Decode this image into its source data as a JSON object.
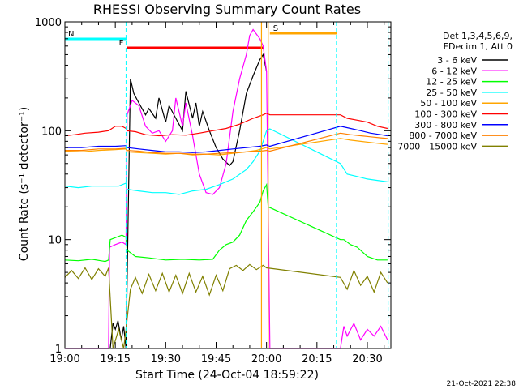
{
  "chart_data": {
    "type": "line",
    "title": "RHESSI Observing Summary Count Rates",
    "xlabel": "Start Time (24-Oct-04 18:59:22)",
    "ylabel": "Count Rate (s⁻¹ detector⁻¹)",
    "y_scale": "log",
    "ylim": [
      1,
      1000
    ],
    "xlim_minutes_after_19:00": [
      0,
      97
    ],
    "x_tick_labels": [
      "19:00",
      "19:15",
      "19:30",
      "19:45",
      "20:00",
      "20:15",
      "20:30"
    ],
    "y_tick_labels": [
      "1",
      "10",
      "100",
      "1000"
    ],
    "legend_header": [
      "Det 1,3,4,5,6,9,",
      "FDecim 1, Att 0"
    ],
    "legend_placement": "right",
    "footer_timestamp": "21-Oct-2021 22:38",
    "flag_labels": [
      {
        "label": "N",
        "color": "#00ffff",
        "start": 0,
        "end": 18.5
      },
      {
        "label": "F",
        "color": "#ff0000",
        "start": 18.5,
        "end": 59
      },
      {
        "label": "S",
        "color": "#ffa500",
        "start": 61,
        "end": 81
      }
    ],
    "night_markers_min": [
      18.2,
      80.8,
      96.2
    ],
    "series": [
      {
        "name": "3 - 6 keV",
        "color": "#000000",
        "points": [
          [
            13.5,
            1
          ],
          [
            14.3,
            1.7
          ],
          [
            15,
            1.5
          ],
          [
            15.8,
            1.8
          ],
          [
            16.8,
            1.2
          ],
          [
            17.5,
            1.6
          ],
          [
            18.2,
            1
          ],
          [
            19.5,
            300
          ],
          [
            20.5,
            220
          ],
          [
            22,
            180
          ],
          [
            24,
            140
          ],
          [
            25,
            160
          ],
          [
            27,
            130
          ],
          [
            28,
            200
          ],
          [
            30,
            120
          ],
          [
            31,
            170
          ],
          [
            33,
            130
          ],
          [
            35,
            100
          ],
          [
            36,
            230
          ],
          [
            38,
            130
          ],
          [
            39,
            180
          ],
          [
            40,
            110
          ],
          [
            41,
            150
          ],
          [
            43,
            100
          ],
          [
            45,
            70
          ],
          [
            47,
            55
          ],
          [
            49,
            48
          ],
          [
            50,
            52
          ],
          [
            52,
            100
          ],
          [
            54,
            220
          ],
          [
            56,
            320
          ],
          [
            58,
            450
          ],
          [
            59,
            500
          ],
          [
            60,
            350
          ]
        ]
      },
      {
        "name": "6 - 12 keV",
        "color": "#ff00ff",
        "points": [
          [
            0,
            1
          ],
          [
            13,
            1
          ],
          [
            13.3,
            8.5
          ],
          [
            15,
            9
          ],
          [
            17,
            9.5
          ],
          [
            18.2,
            9
          ],
          [
            18.5,
            140
          ],
          [
            20,
            190
          ],
          [
            22,
            170
          ],
          [
            24,
            110
          ],
          [
            26,
            95
          ],
          [
            28,
            100
          ],
          [
            30,
            80
          ],
          [
            32,
            100
          ],
          [
            33,
            200
          ],
          [
            35,
            110
          ],
          [
            36,
            180
          ],
          [
            38,
            90
          ],
          [
            40,
            40
          ],
          [
            42,
            27
          ],
          [
            44,
            26
          ],
          [
            46,
            30
          ],
          [
            48,
            50
          ],
          [
            50,
            150
          ],
          [
            52,
            300
          ],
          [
            54,
            500
          ],
          [
            55,
            750
          ],
          [
            56,
            850
          ],
          [
            58,
            700
          ],
          [
            59,
            600
          ],
          [
            60,
            350
          ],
          [
            61,
            1
          ],
          [
            82,
            1
          ],
          [
            83,
            1.6
          ],
          [
            84,
            1.3
          ],
          [
            86,
            1.7
          ],
          [
            88,
            1.2
          ],
          [
            90,
            1.5
          ],
          [
            92,
            1.3
          ],
          [
            94,
            1.6
          ],
          [
            96,
            1.2
          ]
        ]
      },
      {
        "name": "12 - 25 keV",
        "color": "#00ff00",
        "points": [
          [
            0,
            6.5
          ],
          [
            4,
            6.4
          ],
          [
            8,
            6.6
          ],
          [
            12,
            6.3
          ],
          [
            13,
            6.5
          ],
          [
            13.5,
            10
          ],
          [
            17,
            11
          ],
          [
            18.2,
            10.5
          ],
          [
            18.5,
            8
          ],
          [
            21,
            7
          ],
          [
            25,
            6.8
          ],
          [
            30,
            6.5
          ],
          [
            35,
            6.6
          ],
          [
            40,
            6.5
          ],
          [
            44,
            6.6
          ],
          [
            46,
            8
          ],
          [
            48,
            9
          ],
          [
            50,
            9.5
          ],
          [
            52,
            11
          ],
          [
            54,
            15
          ],
          [
            56,
            18
          ],
          [
            58,
            22
          ],
          [
            59,
            28
          ],
          [
            60,
            32
          ],
          [
            60.5,
            20
          ],
          [
            82,
            10
          ],
          [
            83,
            10
          ],
          [
            85,
            9
          ],
          [
            87,
            8.5
          ],
          [
            90,
            7
          ],
          [
            93,
            6.5
          ],
          [
            96,
            6.5
          ]
        ]
      },
      {
        "name": "25 - 50 keV",
        "color": "#00ffff",
        "points": [
          [
            0,
            31
          ],
          [
            4,
            30
          ],
          [
            8,
            31
          ],
          [
            12,
            31
          ],
          [
            16,
            31
          ],
          [
            18.2,
            33
          ],
          [
            18.5,
            29
          ],
          [
            22,
            28
          ],
          [
            26,
            27
          ],
          [
            30,
            27
          ],
          [
            34,
            26
          ],
          [
            38,
            28
          ],
          [
            42,
            29
          ],
          [
            46,
            32
          ],
          [
            50,
            36
          ],
          [
            54,
            44
          ],
          [
            56,
            52
          ],
          [
            58,
            65
          ],
          [
            59,
            80
          ],
          [
            60,
            100
          ],
          [
            61,
            104
          ],
          [
            82,
            50
          ],
          [
            84,
            40
          ],
          [
            87,
            38
          ],
          [
            90,
            36
          ],
          [
            93,
            35
          ],
          [
            96,
            34
          ]
        ]
      },
      {
        "name": "50 - 100 keV",
        "color": "#ffa500",
        "points": [
          [
            0,
            65
          ],
          [
            5,
            64
          ],
          [
            10,
            66
          ],
          [
            15,
            67
          ],
          [
            18.2,
            68
          ],
          [
            18.5,
            64
          ],
          [
            22,
            63
          ],
          [
            26,
            62
          ],
          [
            30,
            61
          ],
          [
            34,
            62
          ],
          [
            38,
            60
          ],
          [
            42,
            61
          ],
          [
            46,
            60
          ],
          [
            50,
            62
          ],
          [
            54,
            64
          ],
          [
            57,
            66
          ],
          [
            60,
            70
          ],
          [
            61,
            68
          ],
          [
            82,
            85
          ],
          [
            85,
            82
          ],
          [
            88,
            80
          ],
          [
            91,
            78
          ],
          [
            94,
            76
          ],
          [
            96,
            75
          ]
        ]
      },
      {
        "name": "100 - 300 keV",
        "color": "#ff0000",
        "points": [
          [
            0,
            90
          ],
          [
            3,
            92
          ],
          [
            6,
            95
          ],
          [
            10,
            97
          ],
          [
            13,
            100
          ],
          [
            15,
            110
          ],
          [
            17,
            110
          ],
          [
            18.2,
            105
          ],
          [
            18.5,
            100
          ],
          [
            21,
            98
          ],
          [
            24,
            92
          ],
          [
            28,
            90
          ],
          [
            32,
            92
          ],
          [
            36,
            91
          ],
          [
            40,
            95
          ],
          [
            44,
            100
          ],
          [
            48,
            105
          ],
          [
            52,
            115
          ],
          [
            56,
            130
          ],
          [
            59,
            140
          ],
          [
            60,
            145
          ],
          [
            61,
            140
          ],
          [
            82,
            140
          ],
          [
            84,
            130
          ],
          [
            87,
            125
          ],
          [
            90,
            120
          ],
          [
            93,
            110
          ],
          [
            96,
            105
          ]
        ]
      },
      {
        "name": "300 - 800 keV",
        "color": "#0000ff",
        "points": [
          [
            0,
            70
          ],
          [
            5,
            70
          ],
          [
            10,
            72
          ],
          [
            15,
            72
          ],
          [
            18.2,
            73
          ],
          [
            18.5,
            70
          ],
          [
            22,
            68
          ],
          [
            26,
            66
          ],
          [
            30,
            64
          ],
          [
            34,
            64
          ],
          [
            38,
            63
          ],
          [
            42,
            64
          ],
          [
            46,
            66
          ],
          [
            50,
            68
          ],
          [
            54,
            70
          ],
          [
            58,
            72
          ],
          [
            60,
            74
          ],
          [
            61,
            72
          ],
          [
            82,
            110
          ],
          [
            85,
            105
          ],
          [
            88,
            100
          ],
          [
            91,
            95
          ],
          [
            94,
            92
          ],
          [
            96,
            90
          ]
        ]
      },
      {
        "name": "800 - 7000 keV",
        "color": "#ff8000",
        "points": [
          [
            0,
            66
          ],
          [
            5,
            66
          ],
          [
            10,
            68
          ],
          [
            15,
            68
          ],
          [
            18.2,
            69
          ],
          [
            18.5,
            66
          ],
          [
            22,
            65
          ],
          [
            26,
            63
          ],
          [
            30,
            62
          ],
          [
            34,
            62
          ],
          [
            38,
            61
          ],
          [
            42,
            61
          ],
          [
            46,
            62
          ],
          [
            50,
            63
          ],
          [
            54,
            64
          ],
          [
            58,
            65
          ],
          [
            60,
            66
          ],
          [
            61,
            65
          ],
          [
            82,
            95
          ],
          [
            85,
            92
          ],
          [
            88,
            90
          ],
          [
            91,
            88
          ],
          [
            94,
            86
          ],
          [
            96,
            85
          ]
        ]
      },
      {
        "name": "7000 - 15000 keV",
        "color": "#808000",
        "points": [
          [
            0,
            4.5
          ],
          [
            2,
            5.2
          ],
          [
            4,
            4.4
          ],
          [
            6,
            5.5
          ],
          [
            8,
            4.3
          ],
          [
            10,
            5.4
          ],
          [
            12,
            4.6
          ],
          [
            13,
            5.5
          ],
          [
            14.3,
            1
          ],
          [
            16,
            1.5
          ],
          [
            17.5,
            1
          ],
          [
            18.2,
            1.5
          ],
          [
            19.5,
            3.5
          ],
          [
            21,
            4.5
          ],
          [
            23,
            3.2
          ],
          [
            25,
            4.8
          ],
          [
            27,
            3.4
          ],
          [
            29,
            4.9
          ],
          [
            31,
            3.3
          ],
          [
            33,
            4.7
          ],
          [
            35,
            3.2
          ],
          [
            37,
            4.9
          ],
          [
            39,
            3.3
          ],
          [
            41,
            4.6
          ],
          [
            43,
            3.1
          ],
          [
            45,
            4.7
          ],
          [
            47,
            3.4
          ],
          [
            49,
            5.4
          ],
          [
            51,
            5.8
          ],
          [
            53,
            5.2
          ],
          [
            55,
            5.9
          ],
          [
            57,
            5.3
          ],
          [
            59,
            5.8
          ],
          [
            60,
            5.5
          ],
          [
            82,
            4.5
          ],
          [
            84,
            3.5
          ],
          [
            86,
            5.2
          ],
          [
            88,
            3.8
          ],
          [
            90,
            4.6
          ],
          [
            92,
            3.3
          ],
          [
            94,
            5
          ],
          [
            96,
            4
          ]
        ]
      }
    ]
  }
}
